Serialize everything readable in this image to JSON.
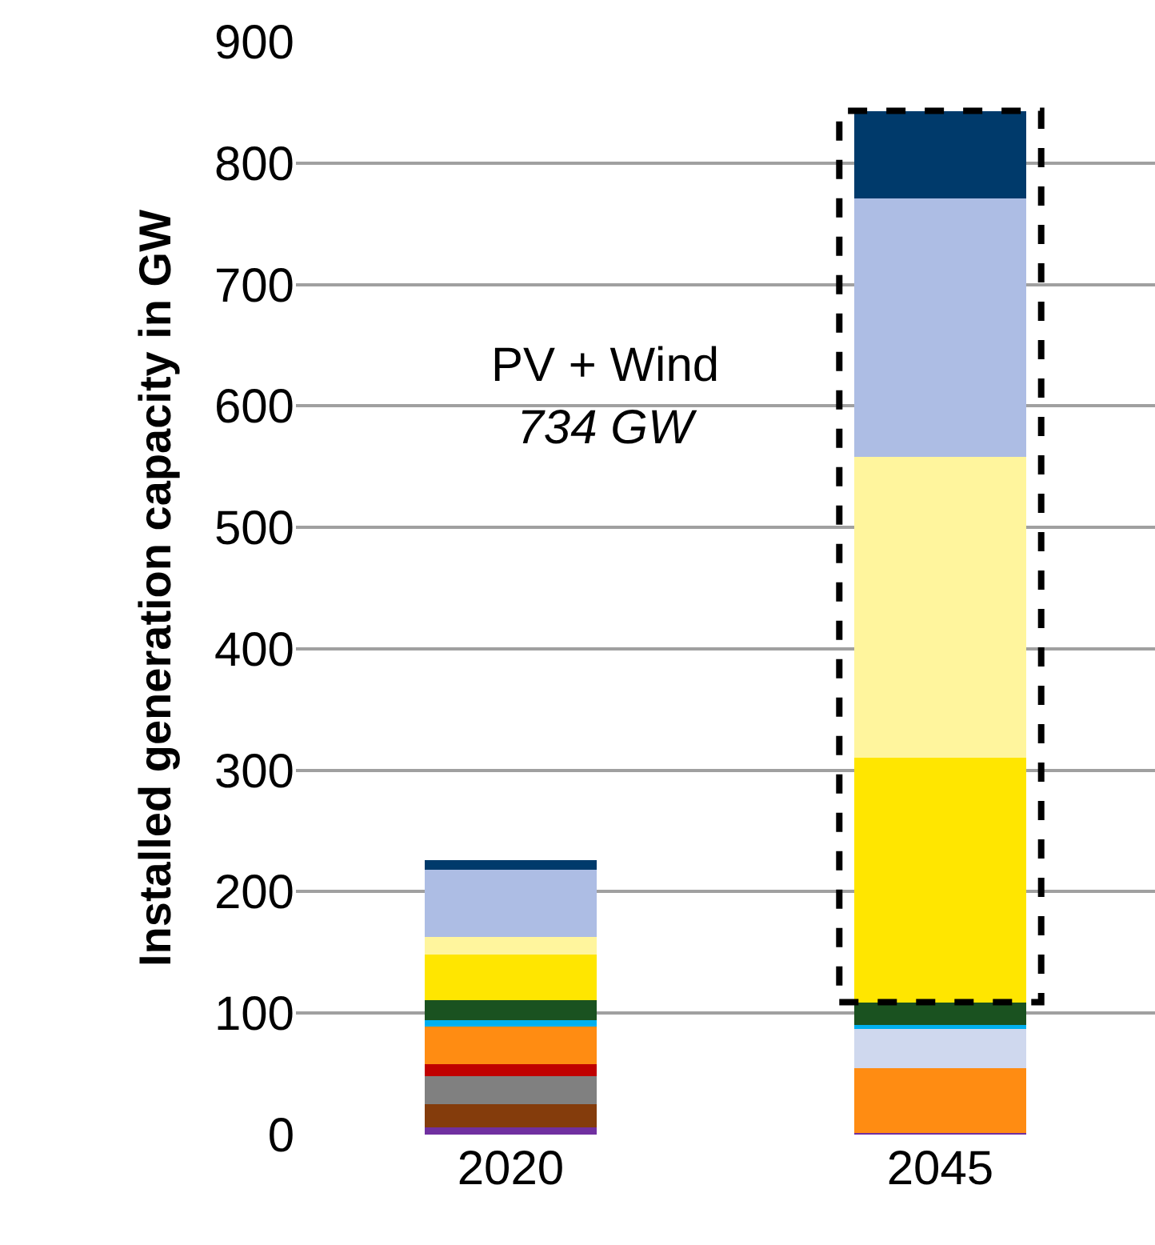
{
  "chart_data": {
    "type": "bar",
    "stacked": true,
    "ylabel": "Installed generation capacity in GW",
    "categories": [
      "2020",
      "2045"
    ],
    "series": [
      {
        "color": "#7030a0",
        "values": [
          6,
          1
        ]
      },
      {
        "color": "#843c0c",
        "values": [
          19,
          0
        ]
      },
      {
        "color": "#808080",
        "values": [
          23,
          0
        ]
      },
      {
        "color": "#c00000",
        "values": [
          10,
          0
        ]
      },
      {
        "color": "#ff8c12",
        "values": [
          31,
          54
        ]
      },
      {
        "color": "#cfd8ee",
        "values": [
          0,
          32
        ]
      },
      {
        "color": "#00b0f0",
        "values": [
          5,
          3
        ]
      },
      {
        "color": "#1a5220",
        "values": [
          17,
          19
        ]
      },
      {
        "color": "#ffe600",
        "values": [
          37,
          201
        ]
      },
      {
        "color": "#fff59d",
        "values": [
          15,
          248
        ]
      },
      {
        "color": "#adbde4",
        "values": [
          55,
          213
        ]
      },
      {
        "color": "#003a6b",
        "values": [
          8,
          72
        ]
      }
    ],
    "ylim": [
      0,
      900
    ],
    "yticks": [
      0,
      100,
      200,
      300,
      400,
      500,
      600,
      700,
      800,
      900
    ],
    "grid": "y",
    "annotations": [
      "PV + Wind\n734 GW"
    ]
  }
}
